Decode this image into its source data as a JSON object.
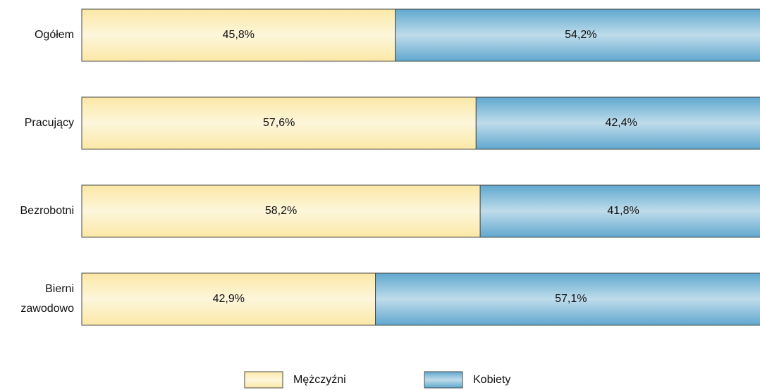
{
  "chart_data": {
    "type": "stacked_bar_horizontal",
    "categories": [
      "Ogółem",
      "Pracujący",
      "Bezrobotni",
      "Bierni zawodowo"
    ],
    "series": [
      {
        "name": "Mężczyźni",
        "color": "#fbe8a6",
        "values": [
          45.8,
          57.6,
          58.2,
          42.9
        ],
        "value_labels": [
          "45,8%",
          "57,6%",
          "58,2%",
          "42,9%"
        ]
      },
      {
        "name": "Kobiety",
        "color": "#5fa8ce",
        "values": [
          54.2,
          42.4,
          41.8,
          57.1
        ],
        "value_labels": [
          "54,2%",
          "42,4%",
          "41,8%",
          "57,1%"
        ]
      }
    ],
    "xlim": [
      0,
      100
    ]
  }
}
